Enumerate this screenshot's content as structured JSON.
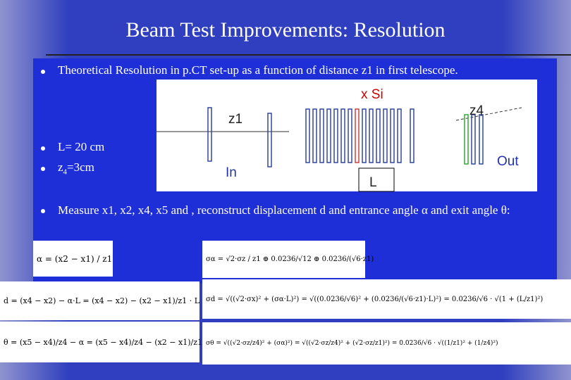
{
  "title": "Beam Test Improvements: Resolution",
  "bullets": {
    "resolution": "Theoretical Resolution in p.CT set-up as a function of distance z1 in first telescope.",
    "length": "L= 20 cm",
    "z4": {
      "base": "z",
      "sub": "4",
      "rest": "=3cm"
    },
    "measure": "Measure x1, x2, x4, x5 and , reconstruct displacement d and entrance angle α and exit angle θ:"
  },
  "diagram": {
    "x_si": "x Si",
    "z1": "z1",
    "z4": "z4",
    "in": "In",
    "out": "Out",
    "l": "L"
  },
  "equations": [
    "α = (x2 − x1) / z1",
    "σα = √2·σz / z1 ⊕ 0.0236/√12 ⊕ 0.0236/(√6·z1)",
    "d = (x4 − x2) − α·L = (x4 − x2) − (x2 − x1)/z1 · L",
    "σd = √((√2·σx)² + (σα·L)²) = √((0.0236/√6)² + (0.0236/(√6·z1)·L)²) = 0.0236/√6 · √(1 + (L/z1)²)",
    "θ = (x5 − x4)/z4 − α = (x5 − x4)/z4 − (x2 − x1)/z1",
    "σθ = √((√2·σz/z4)² + (σα)²) = √((√2·σz/z4)² + (√2·σz/z1)²) = 0.0236/√6 · √((1/z1)² + (1/z4)²)"
  ]
}
